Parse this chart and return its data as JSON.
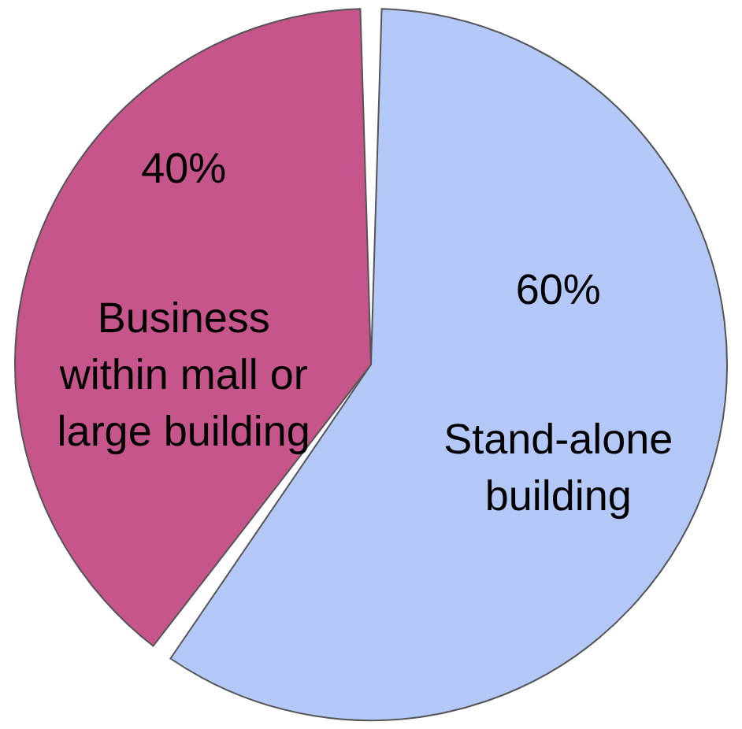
{
  "chart_data": {
    "type": "pie",
    "categories": [
      "Stand-alone building",
      "Business within mall or large building"
    ],
    "values": [
      60,
      40
    ],
    "colors": [
      "#b4c8f8",
      "#c5558a"
    ],
    "value_labels": [
      "60%",
      "40%"
    ]
  }
}
